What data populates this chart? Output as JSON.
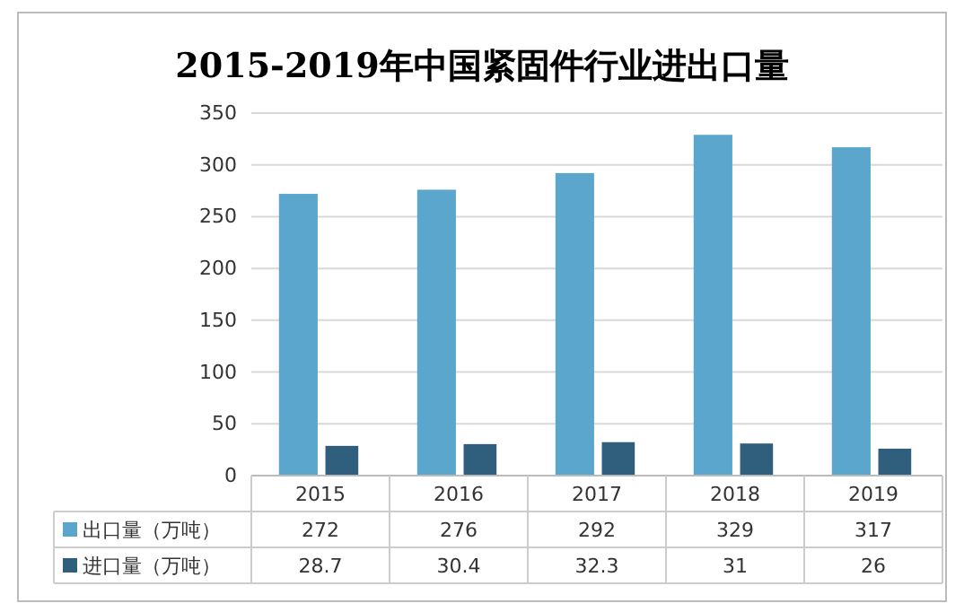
{
  "chart_data": {
    "type": "bar",
    "title": "2015-2019年中国紧固件行业进出口量",
    "categories": [
      "2015",
      "2016",
      "2017",
      "2018",
      "2019"
    ],
    "series": [
      {
        "name": "出口量（万吨）",
        "color": "#5ba6cc",
        "values": [
          272,
          276,
          292,
          329,
          317
        ]
      },
      {
        "name": "进口量（万吨）",
        "color": "#2f5f7c",
        "values": [
          28.7,
          30.4,
          32.3,
          31,
          26
        ]
      }
    ],
    "ylim": [
      0,
      350
    ],
    "yticks": [
      0,
      50,
      100,
      150,
      200,
      250,
      300,
      350
    ],
    "grid": "y",
    "data_labels": true,
    "legend": "bottom"
  }
}
